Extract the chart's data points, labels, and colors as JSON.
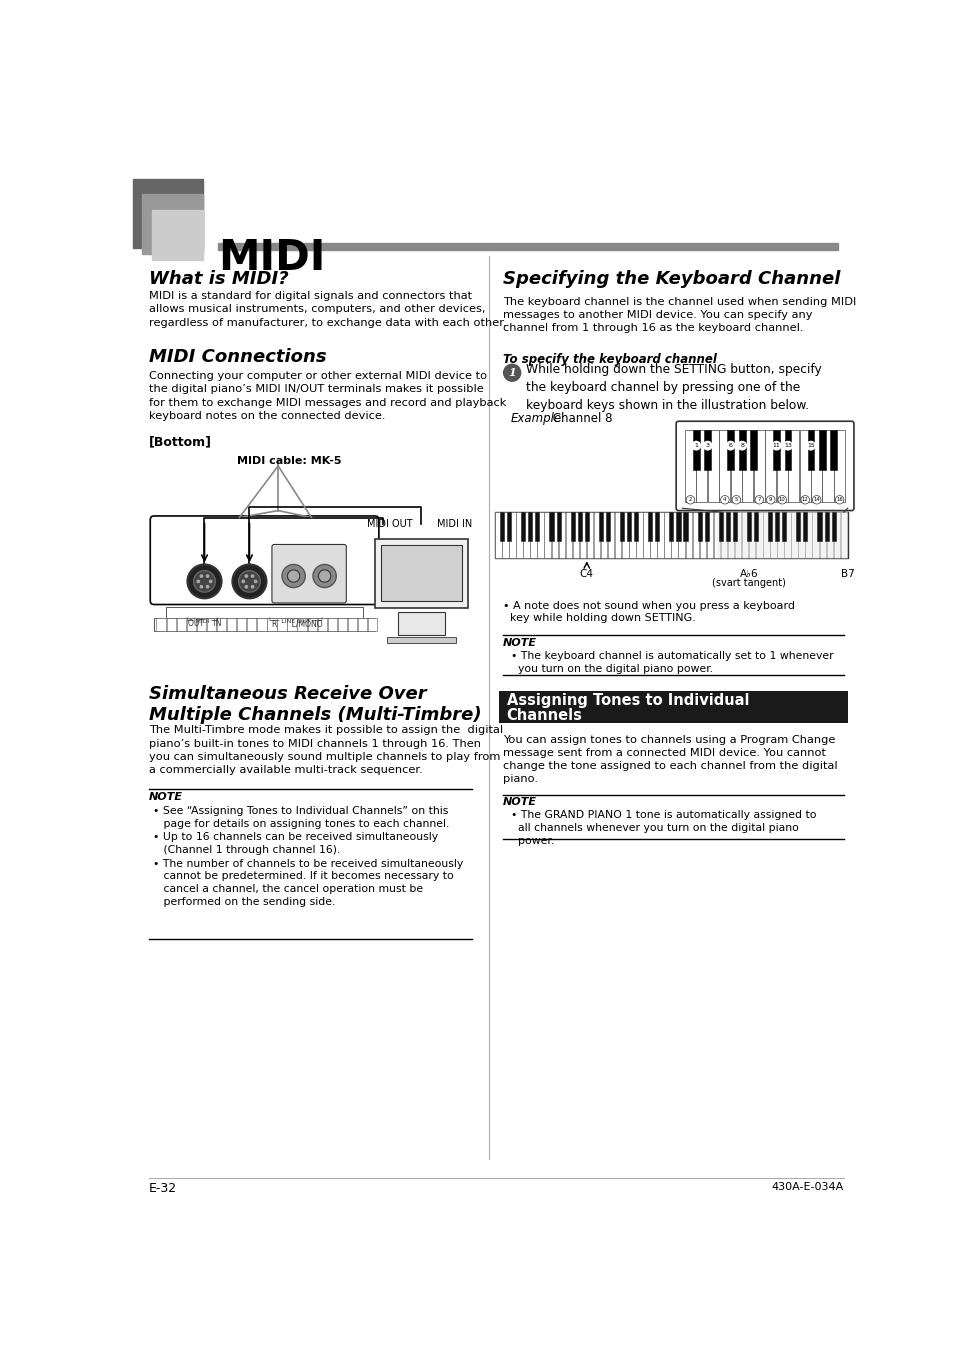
{
  "page_title": "MIDI",
  "bg_color": "#ffffff",
  "text_color": "#000000",
  "section1_title": "What is MIDI?",
  "section1_body": "MIDI is a standard for digital signals and connectors that\nallows musical instruments, computers, and other devices,\nregardless of manufacturer, to exchange data with each other.",
  "section2_title": "MIDI Connections",
  "section2_body": "Connecting your computer or other external MIDI device to\nthe digital piano’s MIDI IN/OUT terminals makes it possible\nfor them to exchange MIDI messages and record and playback\nkeyboard notes on the connected device.",
  "section2_bottom_label": "[Bottom]",
  "section2_cable_label": "MIDI cable: MK-5",
  "section2_midi_out": "MIDI OUT",
  "section2_midi_in": "MIDI IN",
  "section3_title": "Simultaneous Receive Over\nMultiple Channels (Multi-Timbre)",
  "section3_body": "The Multi-Timbre mode makes it possible to assign the  digital\npiano’s built-in tones to MIDI channels 1 through 16. Then\nyou can simultaneously sound multiple channels to play from\na commercially available multi-track sequencer.",
  "note_label": "NOTE",
  "note1_bullets": [
    "• See “Assigning Tones to Individual Channels” on this\n   page for details on assigning tones to each channel.",
    "• Up to 16 channels can be received simultaneously\n   (Channel 1 through channel 16).",
    "• The number of channels to be received simultaneously\n   cannot be predetermined. If it becomes necessary to\n   cancel a channel, the cancel operation must be\n   performed on the sending side."
  ],
  "right_section1_title": "Specifying the Keyboard Channel",
  "right_section1_body": "The keyboard channel is the channel used when sending MIDI\nmessages to another MIDI device. You can specify any\nchannel from 1 through 16 as the keyboard channel.",
  "right_section1_sub": "To specify the keyboard channel",
  "right_step1": "While holding down the SETTING button, specify\nthe keyboard channel by pressing one of the\nkeyboard keys shown in the illustration below.",
  "right_example_italic": "Example:",
  "right_example_normal": " Channel 8",
  "right_keyboard_note": "• A note does not sound when you press a keyboard\n  key while holding down SETTING.",
  "right_note1": "• The keyboard channel is automatically set to 1 whenever\n  you turn on the digital piano power.",
  "right_section2_title": "Assigning Tones to Individual\nChannels",
  "right_section2_body": "You can assign tones to channels using a Program Change\nmessage sent from a connected MIDI device. You cannot\nchange the tone assigned to each channel from the digital\npiano.",
  "right_note2": "• The GRAND PIANO 1 tone is automatically assigned to\n  all channels whenever you turn on the digital piano\n  power.",
  "footer_left": "E-32",
  "footer_right": "430A-E-034A",
  "logo_colors": [
    "#666666",
    "#999999",
    "#cccccc"
  ],
  "gray_bar_color": "#888888",
  "divider_color": "#aaaaaa",
  "dark_box_color": "#1a1a1a"
}
